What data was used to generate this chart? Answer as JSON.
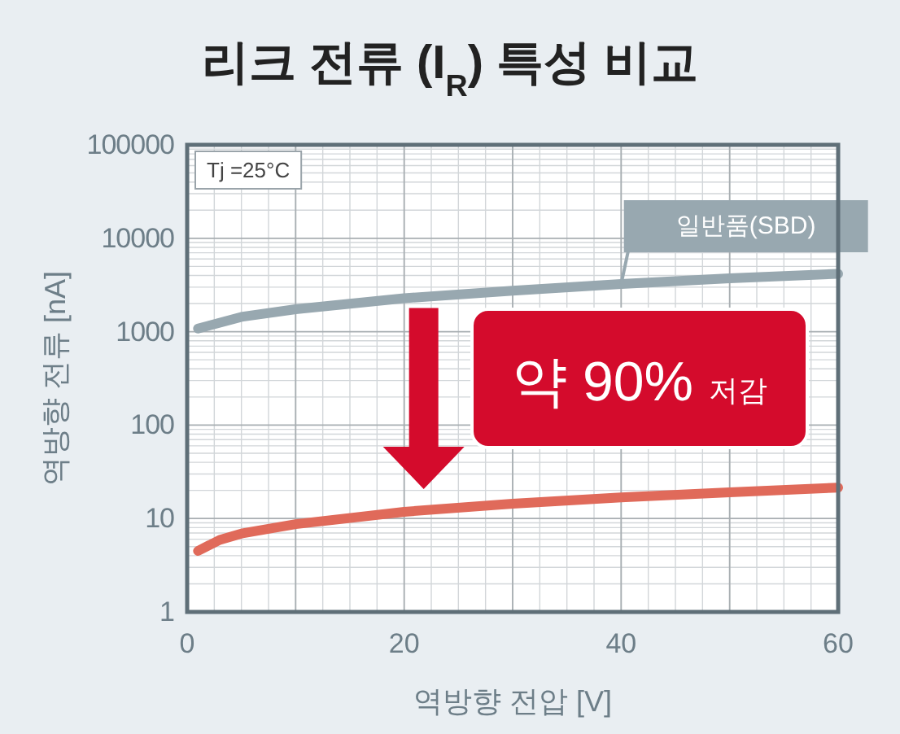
{
  "chart_data": {
    "type": "line",
    "title": "리크 전류 (I$_{R}$) 특성 비교",
    "xlabel": "역방향 전압 [V]",
    "ylabel": "역방향 전류 [nA]",
    "series": [
      {
        "name": "일반품(SBD)",
        "color": "#98a8b0",
        "x": [
          1,
          5,
          10,
          20,
          30,
          40,
          50,
          60
        ],
        "values": [
          1080,
          1440,
          1740,
          2280,
          2750,
          3240,
          3720,
          4170
        ]
      },
      {
        "color": "#e06a5a",
        "x": [
          1,
          3,
          5,
          10,
          20,
          30,
          40,
          50,
          60
        ],
        "values": [
          4.5,
          5.9,
          6.9,
          8.7,
          11.8,
          14.4,
          16.8,
          19.1,
          21.4
        ]
      }
    ],
    "xlim": [
      0,
      60
    ],
    "xticks": [
      0,
      20,
      40,
      60
    ],
    "ylim": [
      1,
      100000
    ],
    "yticks": [
      1,
      10,
      100,
      1000,
      10000,
      100000
    ],
    "log": "y",
    "grid": true,
    "legend": false,
    "annotations": [
      "Tj =25°C",
      "약 90% 저감"
    ]
  }
}
